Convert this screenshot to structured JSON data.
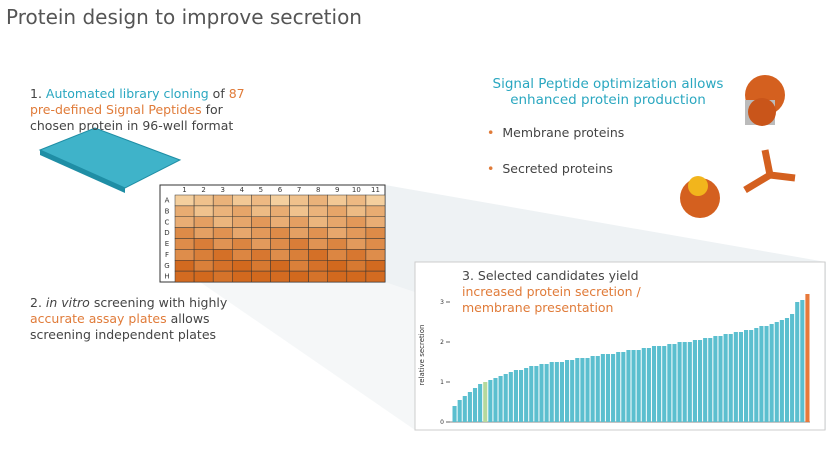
{
  "header": {
    "title": "Protein design to improve secretion"
  },
  "steps": [
    {
      "segments": [
        {
          "text": "1. ",
          "color": "#444444"
        },
        {
          "text": "Automated library cloning",
          "color": "#2aa7c0"
        },
        {
          "text": " of ",
          "color": "#444444"
        },
        {
          "text": "87 pre-defined Signal Peptides",
          "color": "#e07b39"
        },
        {
          "text": " for chosen protein in 96-well format",
          "color": "#444444"
        }
      ]
    },
    {
      "segments": [
        {
          "text": "2. ",
          "color": "#444444"
        },
        {
          "text": "in vitro",
          "color": "#444444",
          "italic": true
        },
        {
          "text": " screening with highly ",
          "color": "#444444"
        },
        {
          "text": "accurate assay plates",
          "color": "#e07b39"
        },
        {
          "text": " allows screening independent plates",
          "color": "#444444"
        }
      ]
    },
    {
      "segments": [
        {
          "text": "3. Selected candidates yield ",
          "color": "#444444"
        },
        {
          "text": "increased protein secretion / membrane presentation",
          "color": "#e07b39"
        }
      ]
    }
  ],
  "plate": {
    "columns": [
      "1",
      "2",
      "3",
      "4",
      "5",
      "6",
      "7",
      "8",
      "9",
      "10",
      "11"
    ],
    "rows": [
      "A",
      "B",
      "C",
      "D",
      "E",
      "F",
      "G",
      "H"
    ]
  },
  "info": {
    "heading": "Signal Peptide optimization allows enhanced protein production",
    "bullets": [
      "Membrane proteins",
      "Secreted proteins"
    ],
    "bullet_mark": "•"
  },
  "chart_data": {
    "type": "bar",
    "y_label": "relative secretion",
    "ylim": [
      0,
      3.3
    ],
    "yticks": [
      0,
      1,
      2,
      3
    ],
    "color": "#5bbfcf",
    "values": [
      0.4,
      0.55,
      0.65,
      0.75,
      0.85,
      0.95,
      1.0,
      1.05,
      1.1,
      1.15,
      1.2,
      1.25,
      1.3,
      1.3,
      1.35,
      1.4,
      1.4,
      1.45,
      1.45,
      1.5,
      1.5,
      1.5,
      1.55,
      1.55,
      1.6,
      1.6,
      1.6,
      1.65,
      1.65,
      1.7,
      1.7,
      1.7,
      1.75,
      1.75,
      1.8,
      1.8,
      1.8,
      1.85,
      1.85,
      1.9,
      1.9,
      1.9,
      1.95,
      1.95,
      2.0,
      2.0,
      2.0,
      2.05,
      2.05,
      2.1,
      2.1,
      2.15,
      2.15,
      2.2,
      2.2,
      2.25,
      2.25,
      2.3,
      2.3,
      2.35,
      2.4,
      2.4,
      2.45,
      2.5,
      2.55,
      2.6,
      2.7,
      3.0,
      3.05,
      3.2
    ],
    "highlights": [
      {
        "index": 6,
        "color": "#b5d99c"
      },
      {
        "index": 69,
        "color": "#e8793a"
      }
    ]
  }
}
